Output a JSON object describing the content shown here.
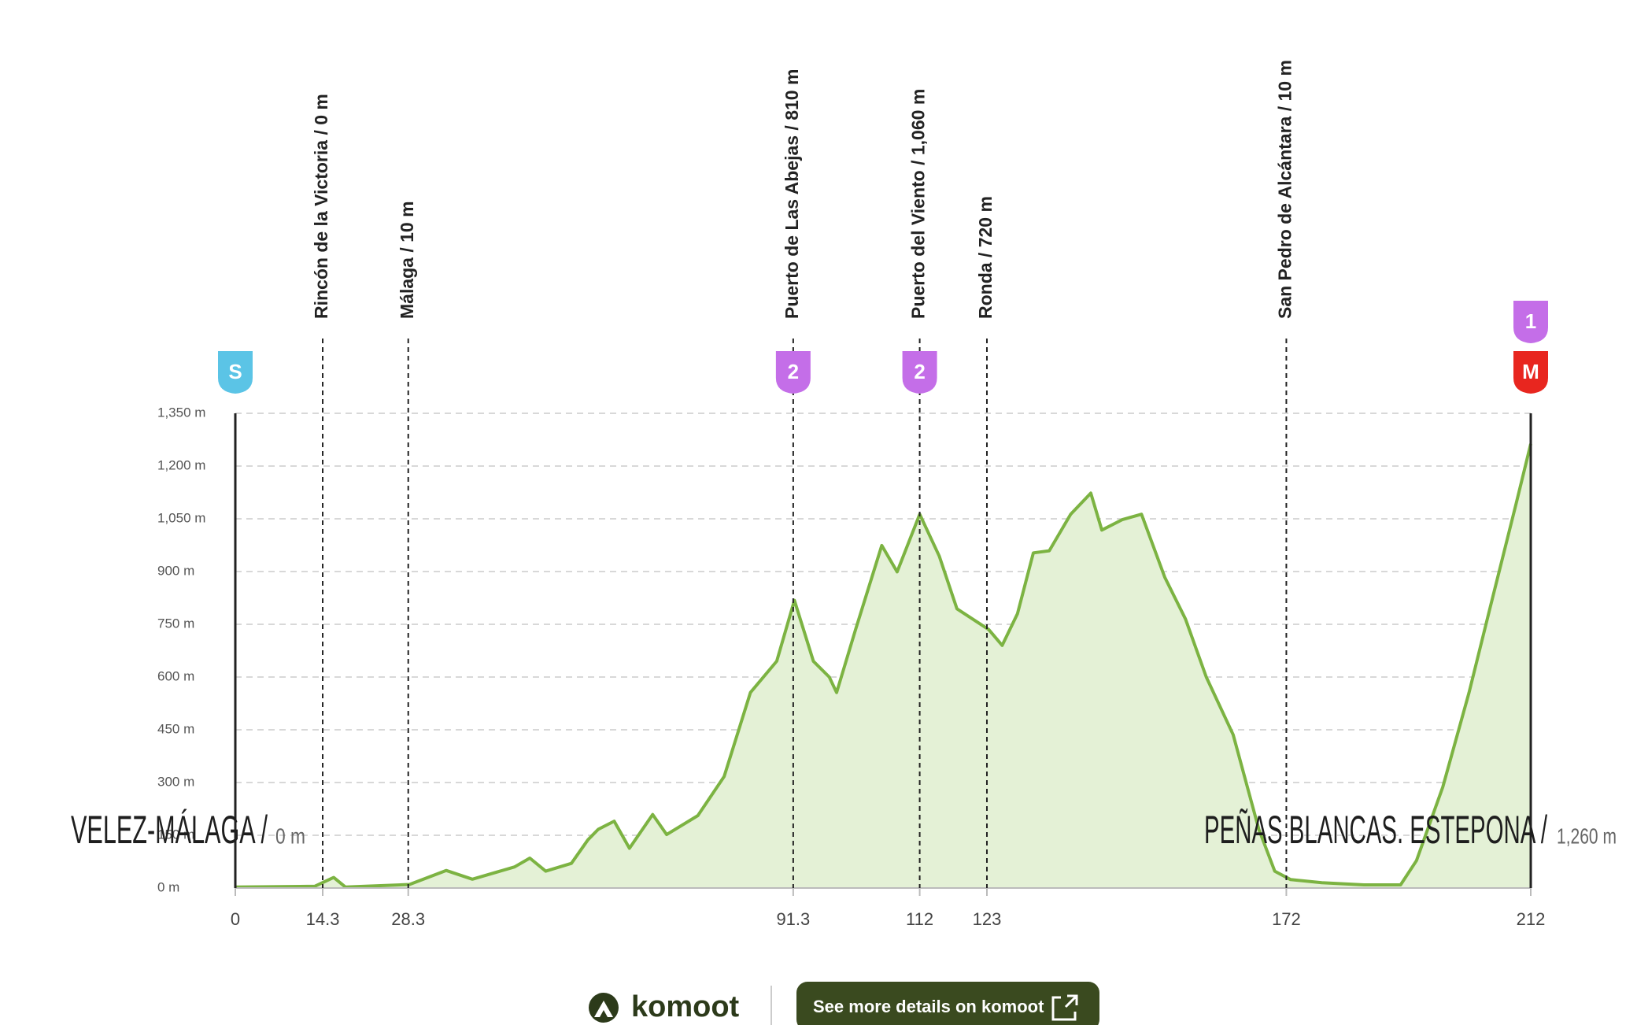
{
  "chart_data": {
    "type": "area",
    "x": [
      0,
      13,
      16.1,
      18,
      28.5,
      34.5,
      38.8,
      45.7,
      48.2,
      50.8,
      55,
      57.7,
      59.4,
      62,
      64.5,
      68.3,
      70.6,
      75.7,
      80,
      84.3,
      88.6,
      91.5,
      94.6,
      97.2,
      98.4,
      101.5,
      105.8,
      108.3,
      112,
      115.2,
      118.1,
      123.3,
      125.5,
      128,
      130.6,
      133.2,
      136.7,
      140,
      141.8,
      145.2,
      148.3,
      152.1,
      155.5,
      158.9,
      163.3,
      167.5,
      170.1,
      172.7,
      177.8,
      184.7,
      190.7,
      193.3,
      197.6,
      201.9,
      205.3,
      209.6,
      212
    ],
    "values": [
      3,
      5,
      30,
      3,
      10,
      50,
      25,
      60,
      85,
      48,
      70,
      137,
      167,
      190,
      113,
      209,
      152,
      206,
      317,
      556,
      645,
      818,
      645,
      600,
      556,
      735,
      974,
      899,
      1063,
      944,
      794,
      735,
      690,
      780,
      953,
      959,
      1063,
      1123,
      1018,
      1048,
      1063,
      884,
      765,
      600,
      436,
      167,
      48,
      24,
      15,
      9,
      9,
      78,
      287,
      556,
      794,
      1093,
      1263
    ],
    "color": "#7cb342",
    "fill": "#e4f1d6",
    "xlim": [
      0,
      212
    ],
    "xticks": [
      0,
      14.3,
      28.3,
      91.3,
      112,
      123,
      172,
      212
    ],
    "ylim": [
      0,
      1350
    ],
    "yticks": [
      {
        "value": 0,
        "label": "0 m"
      },
      {
        "value": 150,
        "label": "150 m"
      },
      {
        "value": 300,
        "label": "300 m"
      },
      {
        "value": 450,
        "label": "450 m"
      },
      {
        "value": 600,
        "label": "600 m"
      },
      {
        "value": 750,
        "label": "750 m"
      },
      {
        "value": 900,
        "label": "900 m"
      },
      {
        "value": 1050,
        "label": "1,050 m"
      },
      {
        "value": 1200,
        "label": "1,200 m"
      },
      {
        "value": 1350,
        "label": "1,350 m"
      }
    ],
    "grid": true,
    "waypoints": [
      {
        "label": "Rincón de la Victoria / 0 m",
        "x": 14.3
      },
      {
        "label": "Málaga / 10 m",
        "x": 28.3
      },
      {
        "label": "Puerto de Las Abejas / 810 m",
        "x": 91.3
      },
      {
        "label": "Puerto del Viento / 1,060 m",
        "x": 112
      },
      {
        "label": "Ronda / 720 m",
        "x": 123
      },
      {
        "label": "San Pedro de Alcántara / 10 m",
        "x": 172
      }
    ],
    "badges": [
      {
        "label": "S",
        "x": 0,
        "color": "#5bc4e6"
      },
      {
        "label": "2",
        "x": 91.3,
        "color": "#c46ee8"
      },
      {
        "label": "2",
        "x": 112,
        "color": "#c46ee8"
      },
      {
        "label": "M",
        "x": 212,
        "color": "#e8261f"
      },
      {
        "label": "1",
        "x": 212,
        "color": "#c46ee8"
      }
    ],
    "start": {
      "name": "VELEZ-MÁLAGA /",
      "elevation": "0 m"
    },
    "finish": {
      "name": "PEÑAS BLANCAS. ESTEPONA /",
      "elevation": "1,260 m"
    }
  },
  "footer": {
    "brand": "komoot",
    "button": "See more details on komoot"
  }
}
